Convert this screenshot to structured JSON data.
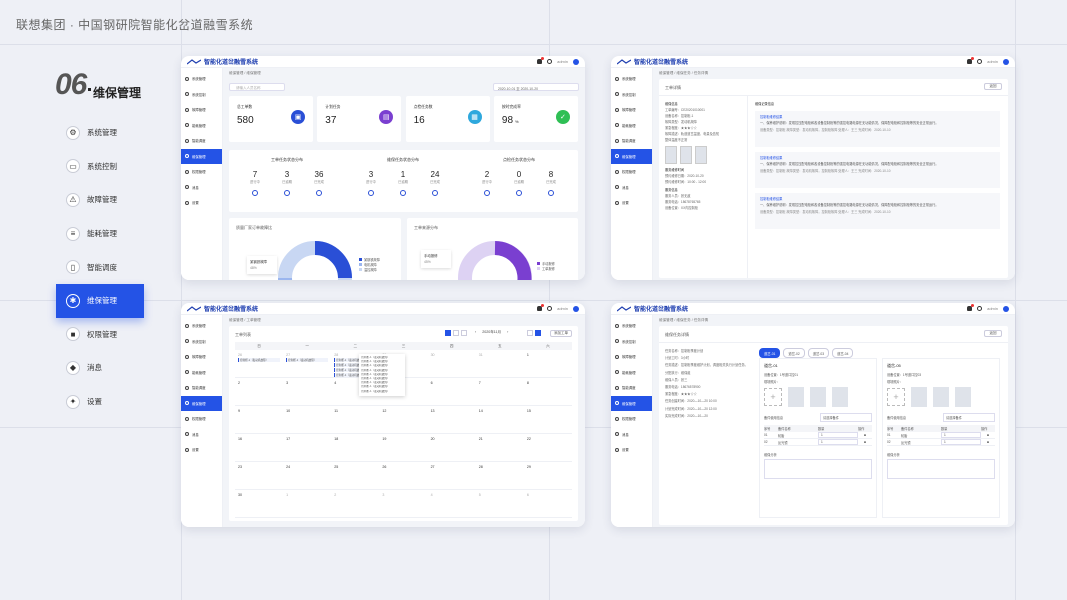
{
  "header": {
    "title": "联想集团 · 中国钢研院智能化岔道融雪系统"
  },
  "section": {
    "number": "06",
    "name": "维保管理"
  },
  "nav": [
    {
      "label": "系统管理",
      "icon": "gear-icon"
    },
    {
      "label": "系统控制",
      "icon": "monitor-icon"
    },
    {
      "label": "故障管理",
      "icon": "alert-icon"
    },
    {
      "label": "能耗管理",
      "icon": "document-icon"
    },
    {
      "label": "智能调度",
      "icon": "train-icon"
    },
    {
      "label": "维保管理",
      "icon": "wrench-icon"
    },
    {
      "label": "权限管理",
      "icon": "lock-icon"
    },
    {
      "label": "消息",
      "icon": "bell-icon"
    },
    {
      "label": "设置",
      "icon": "settings-icon"
    }
  ],
  "app": {
    "name": "智能化道岔融雪系统",
    "user": "admin"
  },
  "side_menu": [
    "系统管理",
    "系统控制",
    "故障管理",
    "能耗管理",
    "智能调度",
    "维保管理",
    "权限管理",
    "消息",
    "设置"
  ],
  "shot1": {
    "crumb": "维保管理 / 维保管理",
    "search_placeholder": "请输入人员名称",
    "date_range": "2020-10-01 至 2020-10-20",
    "stats": [
      {
        "label": "总工单数",
        "value": "580",
        "color": "#2a4fd6",
        "icon": "clipboard-icon",
        "glyph": "▣"
      },
      {
        "label": "计划任务",
        "value": "37",
        "color": "#7a3fd0",
        "icon": "chat-icon",
        "glyph": "▤"
      },
      {
        "label": "点检任务数",
        "value": "16",
        "color": "#2ea8dd",
        "icon": "grid-icon",
        "glyph": "▦"
      },
      {
        "label": "按时完成率",
        "value": "98",
        "unit": "%",
        "color": "#2fbf55",
        "icon": "check-icon",
        "glyph": "✓"
      }
    ],
    "dist": [
      {
        "title": "工单任务状态分布",
        "items": [
          {
            "v": "7",
            "l": "进行中"
          },
          {
            "v": "3",
            "l": "已逾期"
          },
          {
            "v": "36",
            "l": "已完成"
          }
        ]
      },
      {
        "title": "维保任务状态分布",
        "items": [
          {
            "v": "3",
            "l": "进行中"
          },
          {
            "v": "1",
            "l": "已逾期"
          },
          {
            "v": "24",
            "l": "已完成"
          }
        ]
      },
      {
        "title": "点检任务状态分布",
        "items": [
          {
            "v": "2",
            "l": "进行中"
          },
          {
            "v": "0",
            "l": "已逾期"
          },
          {
            "v": "8",
            "l": "已完成"
          }
        ]
      }
    ],
    "donut1": {
      "title": "质量厂家订单故障比",
      "callout": "某钢铁故障",
      "callout_pct": "48%",
      "legend": [
        "某钢铁故障",
        "电机故障",
        "温控故障"
      ]
    },
    "donut2": {
      "title": "工单来源分布",
      "callout": "手动报修",
      "callout_pct": "45%",
      "legend": [
        "手动报修",
        "工单报修"
      ]
    }
  },
  "shot2": {
    "crumb": "维保管理 / 维保任务 / 任务详情",
    "card_title": "工单详情",
    "back": "返回",
    "info_title": "维保信息",
    "fields": [
      "工单编号：CE20201010001",
      "设备名称：控制柜-1",
      "故障类型：发动机故障",
      "紧急程度：★★★☆☆",
      "故障描述：轨道道岔温度、电量及告知",
      "整体温度不正常"
    ],
    "times_title": "服务维修时间",
    "times": [
      "预约维修日期：2020-10-20",
      "预约维修时间：10:00 - 12:00"
    ],
    "person_title": "服务信息",
    "person": [
      "服务人员：张无敌",
      "服务电话：18678765765",
      "设备位置：XX内控制柜"
    ],
    "records_title": "维保记录信息",
    "records": [
      {
        "title": "控制柜维修结果",
        "text": "一、保养维护说明：发现控压配电柜和各设备控制柜等的强控电路电源在无功能情况，保障配电柜和控制柜等的安全正常运行。",
        "meta": "设备类型：控制柜   故障类型：发动机故障，控制柜故障   处理人：王三   完成时间：2020-10-10"
      },
      {
        "title": "控制柜维修结果",
        "text": "一、保养维护说明：发现控压配电柜和各设备控制柜等的强控电路电源在无功能情况，保障配电柜和控制柜等的安全正常运行。",
        "meta": "设备类型：控制柜   故障类型：发动机故障，控制柜故障   处理人：王三   完成时间：2020-10-10"
      },
      {
        "title": "控制柜维修结果",
        "text": "一、保养维护说明：发现控压配电柜和各设备控制柜等的强控电路电源在无功能情况，保障配电柜和控制柜等的安全正常运行。",
        "meta": "设备类型：控制柜   故障类型：发动机故障，控制柜故障   处理人：王三   完成时间：2020-10-10"
      }
    ]
  },
  "shot3": {
    "crumb": "维保管理 / 工单管理",
    "card_title": "工单列表",
    "month": "2020年11月",
    "add": "添加工单",
    "weekdays": [
      "日",
      "一",
      "二",
      "三",
      "四",
      "五",
      "六"
    ],
    "weeks": [
      [
        "26",
        "27",
        "28",
        "29",
        "30",
        "31",
        "1"
      ],
      [
        "2",
        "3",
        "4",
        "5",
        "6",
        "7",
        "8"
      ],
      [
        "9",
        "10",
        "11",
        "12",
        "13",
        "14",
        "15"
      ],
      [
        "16",
        "17",
        "18",
        "19",
        "20",
        "21",
        "22"
      ],
      [
        "23",
        "24",
        "25",
        "26",
        "27",
        "28",
        "29"
      ],
      [
        "30",
        "1",
        "2",
        "3",
        "4",
        "5",
        "6"
      ]
    ],
    "event": "控制柜-1（发动机故障）"
  },
  "shot4": {
    "crumb": "维保管理 / 维保任务 / 任务详情",
    "card_title": "维保任务详情",
    "back": "返回",
    "fields": [
      "任务名称：控制柜季度计划",
      "计划工时：3小时",
      "任务描述：控制柜季度维护计划，调度相关执行计划任务。",
      "分配执行：维保组",
      "维保人员：张三",
      "服务电话：18676578900",
      "紧急程度：★★★☆☆",
      "任务创建时间：2020—10—20 10:00",
      "计划完成时间：2020—10—20 12:00",
      "实际完成时间：2020—10—20"
    ],
    "tabs": [
      "道岔-01",
      "道岔-02",
      "道岔-03",
      "道岔-04"
    ],
    "panels": [
      {
        "title": "道岔-01",
        "loc": "设备位置：1号道口控01",
        "photo": "现场照片：",
        "select": "请选择备件",
        "parts_title": "备件使用信息",
        "rows": [
          [
            "01",
            "轮胎",
            "1"
          ],
          [
            "02",
            "反光镜",
            "1"
          ]
        ],
        "analysis": "维保分析"
      },
      {
        "title": "道岔-05",
        "loc": "设备位置：1号道口控03",
        "photo": "现场照片：",
        "select": "请选择备件",
        "parts_title": "备件使用信息",
        "rows": [
          [
            "01",
            "轮胎",
            "1"
          ],
          [
            "02",
            "反光镜",
            "1"
          ]
        ],
        "analysis": "维保分析"
      }
    ],
    "table_head": [
      "序号",
      "备件名称",
      "数量",
      "操作"
    ]
  }
}
